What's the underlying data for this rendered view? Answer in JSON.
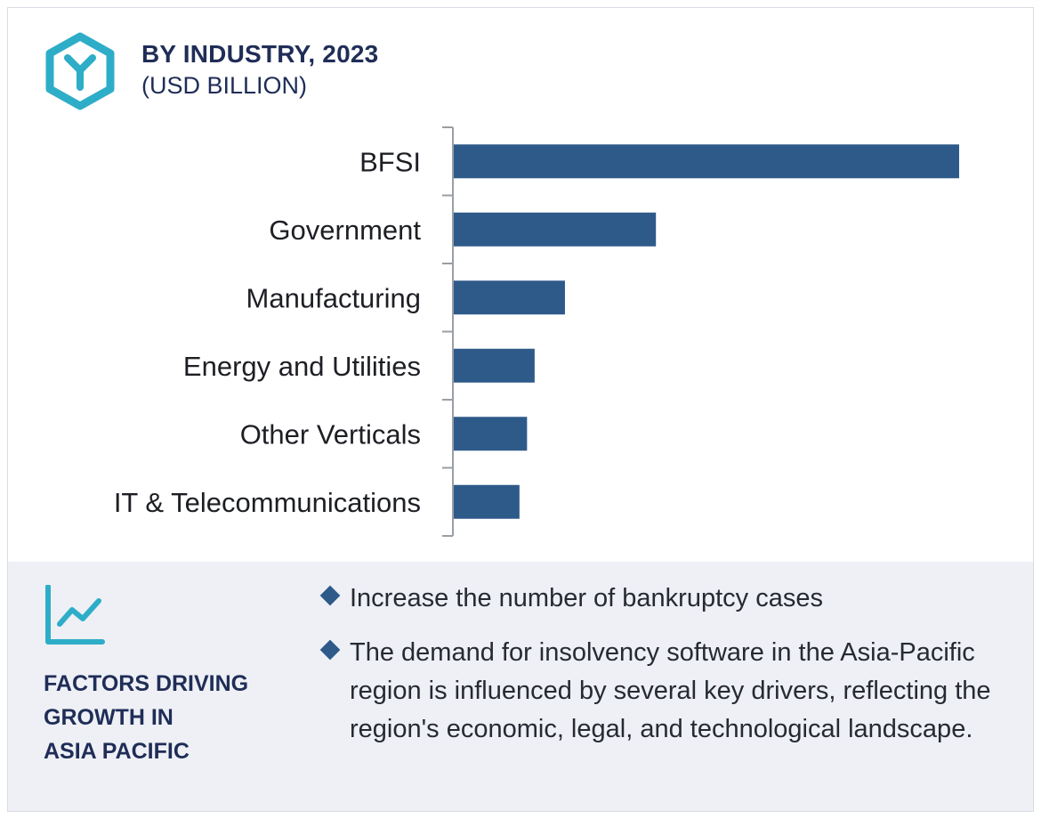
{
  "header": {
    "title": "BY INDUSTRY, 2023",
    "subtitle": "(USD BILLION)",
    "icon": "hexagon-y-logo-icon"
  },
  "colors": {
    "bar": "#2e5a8a",
    "accent_teal": "#2eadc8",
    "heading_navy": "#1f2d57",
    "panel_bg": "#eef0f5"
  },
  "chart_data": {
    "type": "bar",
    "orientation": "horizontal",
    "categories": [
      "BFSI",
      "Government",
      "Manufacturing",
      "Energy and Utilities",
      "Other Verticals",
      "IT & Telecommunications"
    ],
    "values": [
      1.0,
      0.4,
      0.22,
      0.16,
      0.145,
      0.13
    ],
    "xlim": [
      0,
      1.0
    ],
    "xlabel": "",
    "ylabel": "",
    "grid": false,
    "legend": "none"
  },
  "drivers": {
    "icon": "trend-line-chart-icon",
    "heading_lines": [
      "FACTORS DRIVING",
      "GROWTH IN",
      "ASIA PACIFIC"
    ],
    "bullets": [
      "Increase the number of bankruptcy cases",
      "The demand for insolvency software in the Asia-Pacific region is influenced by several key drivers, reflecting the region's economic, legal, and technological landscape."
    ]
  }
}
